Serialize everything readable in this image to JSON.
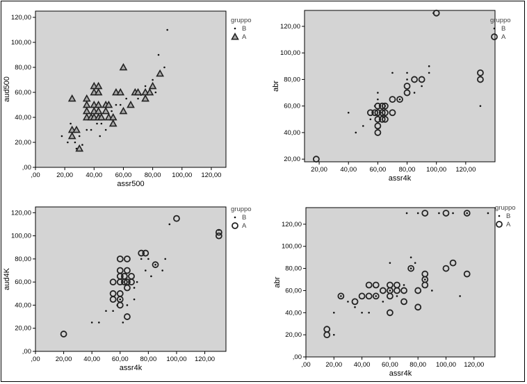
{
  "chart_data": [
    {
      "type": "scatter",
      "xlabel": "assr500",
      "ylabel": "aud500",
      "xlim": [
        0,
        130
      ],
      "ylim": [
        0,
        125
      ],
      "xticks": [
        ",00",
        "20,00",
        "40,00",
        "60,00",
        "80,00",
        "100,00",
        "120,00"
      ],
      "yticks": [
        ",00",
        "20,00",
        "40,00",
        "60,00",
        "80,00",
        "100,00",
        "120,00"
      ],
      "legend_title": "gruppo",
      "legend_placement": "right",
      "series": [
        {
          "name": "B",
          "marker": "dot",
          "points": [
            [
              18,
              25
            ],
            [
              22,
              20
            ],
            [
              24,
              35
            ],
            [
              27,
              20
            ],
            [
              28,
              15
            ],
            [
              30,
              25
            ],
            [
              32,
              18
            ],
            [
              35,
              30
            ],
            [
              38,
              30
            ],
            [
              40,
              40
            ],
            [
              42,
              35
            ],
            [
              44,
              25
            ],
            [
              45,
              35
            ],
            [
              48,
              30
            ],
            [
              50,
              40
            ],
            [
              52,
              45
            ],
            [
              55,
              50
            ],
            [
              58,
              50
            ],
            [
              60,
              45
            ],
            [
              62,
              55
            ],
            [
              65,
              50
            ],
            [
              68,
              60
            ],
            [
              70,
              55
            ],
            [
              72,
              58
            ],
            [
              75,
              65
            ],
            [
              78,
              60
            ],
            [
              80,
              70
            ],
            [
              82,
              60
            ],
            [
              84,
              90
            ],
            [
              88,
              80
            ],
            [
              90,
              110
            ]
          ]
        },
        {
          "name": "A",
          "marker": "triangle",
          "points": [
            [
              25,
              55
            ],
            [
              25,
              30
            ],
            [
              25,
              25
            ],
            [
              28,
              30
            ],
            [
              30,
              15
            ],
            [
              35,
              55
            ],
            [
              35,
              50
            ],
            [
              35,
              45
            ],
            [
              35,
              40
            ],
            [
              38,
              40
            ],
            [
              40,
              65
            ],
            [
              40,
              60
            ],
            [
              40,
              50
            ],
            [
              40,
              45
            ],
            [
              40,
              40
            ],
            [
              43,
              65
            ],
            [
              43,
              60
            ],
            [
              43,
              50
            ],
            [
              43,
              45
            ],
            [
              43,
              40
            ],
            [
              45,
              40
            ],
            [
              48,
              50
            ],
            [
              48,
              45
            ],
            [
              50,
              50
            ],
            [
              50,
              40
            ],
            [
              53,
              40
            ],
            [
              53,
              35
            ],
            [
              55,
              60
            ],
            [
              58,
              60
            ],
            [
              60,
              80
            ],
            [
              60,
              45
            ],
            [
              65,
              50
            ],
            [
              68,
              60
            ],
            [
              70,
              60
            ],
            [
              75,
              60
            ],
            [
              75,
              55
            ],
            [
              78,
              60
            ],
            [
              80,
              65
            ],
            [
              85,
              75
            ]
          ]
        }
      ]
    },
    {
      "type": "scatter",
      "xlabel": "assr4k",
      "ylabel": "abr",
      "xlim": [
        10,
        140
      ],
      "ylim": [
        18,
        132
      ],
      "xticks": [
        "20,00",
        "40,00",
        "60,00",
        "80,00",
        "100,00",
        "120,00"
      ],
      "yticks": [
        "20,00",
        "40,00",
        "60,00",
        "80,00",
        "100,00",
        "120,00"
      ],
      "legend_title": "gruppo",
      "legend_placement": "right",
      "series": [
        {
          "name": "B",
          "marker": "dot",
          "points": [
            [
              40,
              55
            ],
            [
              45,
              40
            ],
            [
              50,
              45
            ],
            [
              55,
              50
            ],
            [
              58,
              60
            ],
            [
              60,
              65
            ],
            [
              60,
              70
            ],
            [
              62,
              55
            ],
            [
              65,
              60
            ],
            [
              70,
              85
            ],
            [
              75,
              65
            ],
            [
              80,
              85
            ],
            [
              80,
              80
            ],
            [
              85,
              70
            ],
            [
              90,
              75
            ],
            [
              95,
              85
            ],
            [
              95,
              90
            ],
            [
              98,
              130
            ],
            [
              130,
              60
            ]
          ]
        },
        {
          "name": "A",
          "marker": "circle",
          "points": [
            [
              18,
              20
            ],
            [
              55,
              55
            ],
            [
              58,
              55
            ],
            [
              60,
              60
            ],
            [
              60,
              55
            ],
            [
              60,
              50
            ],
            [
              60,
              45
            ],
            [
              60,
              40
            ],
            [
              63,
              60
            ],
            [
              63,
              55
            ],
            [
              63,
              50
            ],
            [
              65,
              60
            ],
            [
              65,
              55
            ],
            [
              65,
              50
            ],
            [
              70,
              65
            ],
            [
              70,
              55
            ],
            [
              75,
              65
            ],
            [
              80,
              75
            ],
            [
              80,
              70
            ],
            [
              85,
              80
            ],
            [
              90,
              80
            ],
            [
              100,
              130
            ],
            [
              130,
              85
            ],
            [
              130,
              80
            ]
          ]
        }
      ]
    },
    {
      "type": "scatter",
      "xlabel": "assr4k",
      "ylabel": "aud4K",
      "xlim": [
        0,
        135
      ],
      "ylim": [
        0,
        125
      ],
      "xticks": [
        ",00",
        "20,00",
        "40,00",
        "60,00",
        "80,00",
        "100,00",
        "120,00"
      ],
      "yticks": [
        ",00",
        "20,00",
        "40,00",
        "60,00",
        "80,00",
        "100,00",
        "120,00"
      ],
      "legend_title": "gruppo",
      "legend_placement": "right",
      "series": [
        {
          "name": "B",
          "marker": "dot",
          "points": [
            [
              40,
              25
            ],
            [
              45,
              25
            ],
            [
              50,
              35
            ],
            [
              55,
              35
            ],
            [
              58,
              40
            ],
            [
              60,
              45
            ],
            [
              62,
              25
            ],
            [
              65,
              40
            ],
            [
              70,
              55
            ],
            [
              70,
              45
            ],
            [
              72,
              60
            ],
            [
              75,
              80
            ],
            [
              78,
              70
            ],
            [
              80,
              80
            ],
            [
              82,
              65
            ],
            [
              85,
              75
            ],
            [
              90,
              70
            ],
            [
              92,
              80
            ],
            [
              95,
              110
            ],
            [
              130,
              105
            ]
          ]
        },
        {
          "name": "A",
          "marker": "circle",
          "points": [
            [
              20,
              15
            ],
            [
              55,
              60
            ],
            [
              55,
              50
            ],
            [
              55,
              45
            ],
            [
              60,
              80
            ],
            [
              60,
              70
            ],
            [
              60,
              65
            ],
            [
              60,
              60
            ],
            [
              60,
              50
            ],
            [
              60,
              45
            ],
            [
              60,
              40
            ],
            [
              63,
              65
            ],
            [
              63,
              60
            ],
            [
              65,
              80
            ],
            [
              65,
              70
            ],
            [
              65,
              60
            ],
            [
              65,
              55
            ],
            [
              65,
              30
            ],
            [
              68,
              65
            ],
            [
              68,
              60
            ],
            [
              75,
              85
            ],
            [
              78,
              85
            ],
            [
              85,
              75
            ],
            [
              100,
              115
            ],
            [
              130,
              103
            ],
            [
              130,
              100
            ]
          ]
        }
      ]
    },
    {
      "type": "scatter",
      "xlabel": "assr4k",
      "ylabel": "abr",
      "xlim": [
        0,
        135
      ],
      "ylim": [
        0,
        135
      ],
      "xticks": [
        ",00",
        "20,00",
        "40,00",
        "60,00",
        "80,00",
        "100,00",
        "120,00"
      ],
      "yticks": [
        ",00",
        "20,00",
        "40,00",
        "60,00",
        "80,00",
        "100,00",
        "120,00"
      ],
      "legend_title": "gruppo",
      "legend_placement": "right",
      "series": [
        {
          "name": "B",
          "marker": "dot",
          "points": [
            [
              20,
              40
            ],
            [
              20,
              20
            ],
            [
              25,
              55
            ],
            [
              30,
              50
            ],
            [
              35,
              45
            ],
            [
              40,
              40
            ],
            [
              45,
              40
            ],
            [
              50,
              55
            ],
            [
              55,
              50
            ],
            [
              60,
              85
            ],
            [
              60,
              60
            ],
            [
              65,
              55
            ],
            [
              70,
              65
            ],
            [
              72,
              130
            ],
            [
              75,
              80
            ],
            [
              75,
              90
            ],
            [
              78,
              85
            ],
            [
              80,
              130
            ],
            [
              85,
              70
            ],
            [
              90,
              60
            ],
            [
              95,
              130
            ],
            [
              105,
              130
            ],
            [
              110,
              55
            ],
            [
              115,
              130
            ],
            [
              130,
              130
            ]
          ]
        },
        {
          "name": "A",
          "marker": "circle",
          "points": [
            [
              15,
              25
            ],
            [
              15,
              20
            ],
            [
              25,
              55
            ],
            [
              35,
              50
            ],
            [
              40,
              55
            ],
            [
              45,
              65
            ],
            [
              45,
              55
            ],
            [
              50,
              65
            ],
            [
              50,
              55
            ],
            [
              55,
              60
            ],
            [
              60,
              65
            ],
            [
              60,
              60
            ],
            [
              60,
              55
            ],
            [
              60,
              40
            ],
            [
              65,
              65
            ],
            [
              65,
              60
            ],
            [
              70,
              60
            ],
            [
              70,
              50
            ],
            [
              75,
              80
            ],
            [
              80,
              60
            ],
            [
              80,
              45
            ],
            [
              85,
              75
            ],
            [
              85,
              70
            ],
            [
              85,
              65
            ],
            [
              85,
              130
            ],
            [
              100,
              80
            ],
            [
              100,
              130
            ],
            [
              105,
              85
            ],
            [
              115,
              75
            ],
            [
              115,
              130
            ]
          ]
        }
      ]
    }
  ]
}
